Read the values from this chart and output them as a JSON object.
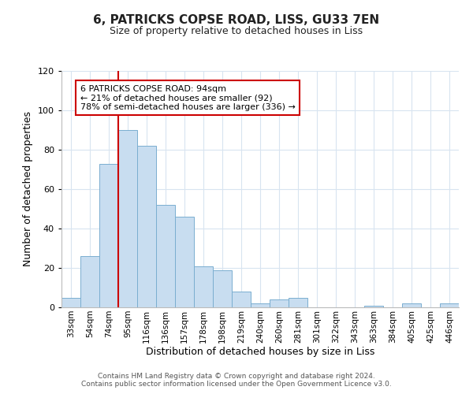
{
  "title": "6, PATRICKS COPSE ROAD, LISS, GU33 7EN",
  "subtitle": "Size of property relative to detached houses in Liss",
  "xlabel": "Distribution of detached houses by size in Liss",
  "ylabel": "Number of detached properties",
  "bar_labels": [
    "33sqm",
    "54sqm",
    "74sqm",
    "95sqm",
    "116sqm",
    "136sqm",
    "157sqm",
    "178sqm",
    "198sqm",
    "219sqm",
    "240sqm",
    "260sqm",
    "281sqm",
    "301sqm",
    "322sqm",
    "343sqm",
    "363sqm",
    "384sqm",
    "405sqm",
    "425sqm",
    "446sqm"
  ],
  "bar_values": [
    5,
    26,
    73,
    90,
    82,
    52,
    46,
    21,
    19,
    8,
    2,
    4,
    5,
    0,
    0,
    0,
    1,
    0,
    2,
    0,
    2
  ],
  "bar_color": "#c8ddf0",
  "bar_edge_color": "#7aaed0",
  "ylim": [
    0,
    120
  ],
  "yticks": [
    0,
    20,
    40,
    60,
    80,
    100,
    120
  ],
  "vline_index": 3,
  "vline_color": "#cc0000",
  "annotation_title": "6 PATRICKS COPSE ROAD: 94sqm",
  "annotation_line1": "← 21% of detached houses are smaller (92)",
  "annotation_line2": "78% of semi-detached houses are larger (336) →",
  "annotation_box_edge": "#cc0000",
  "footer_line1": "Contains HM Land Registry data © Crown copyright and database right 2024.",
  "footer_line2": "Contains public sector information licensed under the Open Government Licence v3.0.",
  "background_color": "#ffffff",
  "grid_color": "#d8e4f0"
}
